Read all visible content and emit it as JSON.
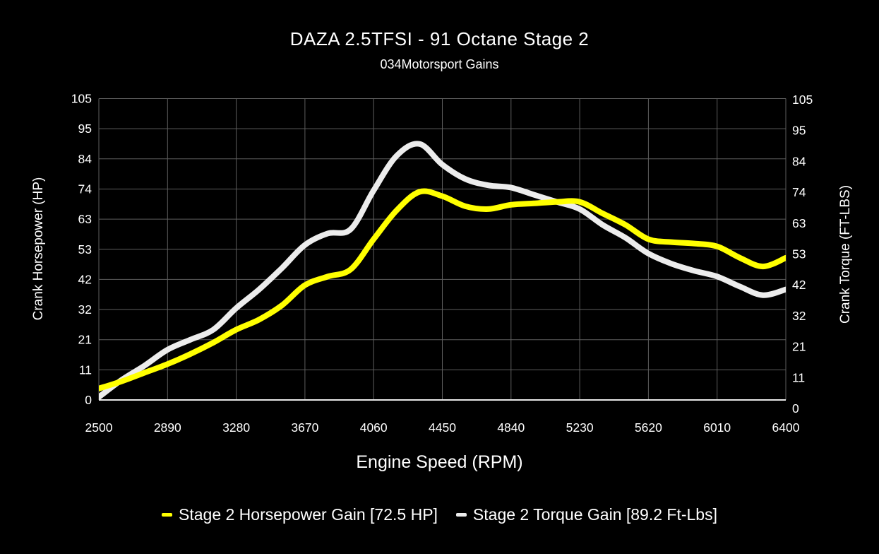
{
  "title": "DAZA 2.5TFSI - 91 Octane Stage 2",
  "subtitle": "034Motorsport Gains",
  "colors": {
    "background": "#000000",
    "text": "#ffffff",
    "grid": "#5e5e5e",
    "baseline": "#e8e8e8",
    "horsepower_series": "#ffff00",
    "torque_series": "#ececec"
  },
  "chart_data": {
    "type": "line",
    "title": "DAZA 2.5TFSI - 91 Octane Stage 2",
    "subtitle": "034Motorsport Gains",
    "xlabel": "Engine Speed (RPM)",
    "ylabel_left": "Crank Horsepower (HP)",
    "ylabel_right": "Crank Torque (FT-LBS)",
    "xlim": [
      2500,
      6400
    ],
    "ylim": [
      0,
      105
    ],
    "grid": true,
    "legend_position": "bottom",
    "x_ticks": [
      2500,
      2890,
      3280,
      3670,
      4060,
      4450,
      4840,
      5230,
      5620,
      6010,
      6400
    ],
    "y_ticks": [
      0,
      11,
      21,
      32,
      42,
      53,
      63,
      74,
      84,
      95,
      105
    ],
    "x": [
      2500,
      2630,
      2760,
      2890,
      3020,
      3150,
      3280,
      3410,
      3540,
      3670,
      3800,
      3930,
      4060,
      4190,
      4320,
      4450,
      4580,
      4710,
      4840,
      4970,
      5100,
      5230,
      5360,
      5490,
      5620,
      5750,
      5880,
      6010,
      6140,
      6270,
      6400
    ],
    "series": [
      {
        "name": "Stage 2 Torque Gain [89.2 Ft-Lbs]",
        "color": "#ececec",
        "peak_value": "89.2 Ft-Lbs",
        "values": [
          1,
          7,
          12,
          17.5,
          21,
          24.5,
          32,
          38.5,
          46,
          54,
          58,
          59.5,
          73,
          85,
          89.2,
          82,
          77,
          74.8,
          74,
          71.5,
          69,
          66.5,
          61,
          56.5,
          51,
          47.5,
          45,
          43,
          39.5,
          36.5,
          38.5
        ]
      },
      {
        "name": "Stage 2 Horsepower Gain [72.5 HP]",
        "color": "#ffff00",
        "peak_value": "72.5 HP",
        "values": [
          4,
          6.5,
          9.5,
          12.5,
          16,
          20,
          24.5,
          28,
          33,
          40,
          43,
          45.5,
          56,
          66,
          72.5,
          71,
          67.5,
          66.5,
          68,
          68.5,
          69,
          69,
          65,
          61,
          56,
          55,
          54.5,
          53.5,
          49.5,
          46.5,
          49.5
        ]
      }
    ]
  }
}
